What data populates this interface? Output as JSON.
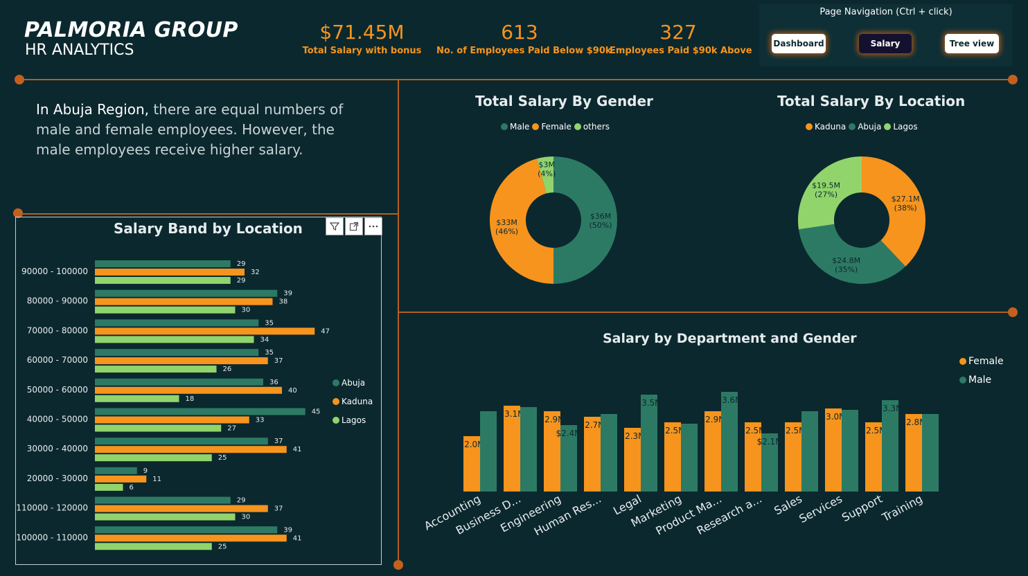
{
  "header": {
    "title": "PALMORIA GROUP",
    "subtitle": "HR ANALYTICS",
    "kpis": [
      {
        "value": "$71.45M",
        "label": "Total Salary with bonus"
      },
      {
        "value": "613",
        "label": "No. of Employees Paid Below $90k"
      },
      {
        "value": "327",
        "label": "Employees Paid $90k  Above"
      }
    ]
  },
  "navigation": {
    "title": "Page Navigation  (Ctrl + click)",
    "buttons": [
      {
        "label": "Dashboard"
      },
      {
        "label": "Salary"
      },
      {
        "label": "Tree view"
      }
    ]
  },
  "insight": {
    "lead": "In Abuja Region,",
    "text": " there are equal numbers of male and female  employees. However, the male employees receive higher salary."
  },
  "colors": {
    "abuja": "#2d7a64",
    "kaduna": "#f7941d",
    "lagos": "#91d46c",
    "male": "#2d7a64",
    "female": "#f7941d",
    "others": "#91d46c",
    "background": "#0b282e",
    "divider": "#b75e1f"
  },
  "icons": [
    "filter-icon",
    "focus-mode-icon",
    "more-options-icon"
  ],
  "chart_data": [
    {
      "id": "salary-band",
      "type": "bar",
      "orientation": "horizontal",
      "title": "Salary Band by Location",
      "categories": [
        "90000 - 100000",
        "80000 - 90000",
        "70000 - 80000",
        "60000 - 70000",
        "50000 - 60000",
        "40000 - 50000",
        "30000 - 40000",
        "20000 - 30000",
        "110000 - 120000",
        "100000 - 110000"
      ],
      "series": [
        {
          "name": "Abuja",
          "values": [
            29,
            39,
            35,
            35,
            36,
            45,
            37,
            9,
            29,
            39
          ]
        },
        {
          "name": "Kaduna",
          "values": [
            32,
            38,
            47,
            37,
            40,
            33,
            41,
            11,
            37,
            41
          ]
        },
        {
          "name": "Lagos",
          "values": [
            29,
            30,
            34,
            26,
            18,
            27,
            25,
            6,
            30,
            25
          ]
        }
      ],
      "legend": "right"
    },
    {
      "id": "gender-donut",
      "type": "pie",
      "title": "Total Salary By Gender",
      "labels": [
        "Male",
        "Female",
        "others"
      ],
      "values": [
        36,
        33,
        3
      ],
      "value_labels": [
        "$36M",
        "$33M",
        "$3M"
      ],
      "percent_labels": [
        "(50%)",
        "(46%)",
        "(4%)"
      ],
      "legend": "top"
    },
    {
      "id": "location-donut",
      "type": "pie",
      "title": "Total Salary By Location",
      "labels": [
        "Kaduna",
        "Abuja",
        "Lagos"
      ],
      "values": [
        27.1,
        24.8,
        19.5
      ],
      "value_labels": [
        "$27.1M",
        "$24.8M",
        "$19.5M"
      ],
      "percent_labels": [
        "(38%)",
        "(35%)",
        "(27%)"
      ],
      "legend": "top"
    },
    {
      "id": "department-gender",
      "type": "bar",
      "title": "Salary by Department and Gender",
      "categories": [
        "Accounting",
        "Business D...",
        "Engineering",
        "Human Res...",
        "Legal",
        "Marketing",
        "Product Ma...",
        "Research a...",
        "Sales",
        "Services",
        "Support",
        "Training"
      ],
      "series": [
        {
          "name": "Female",
          "values": [
            2.0,
            3.1,
            2.9,
            2.7,
            2.3,
            2.5,
            2.9,
            2.5,
            2.5,
            3.0,
            2.5,
            2.8
          ],
          "labels": [
            "$2.0M",
            "$3.1M",
            "$2.9M",
            "$2.7M",
            "$2.3M",
            "$2.5M",
            "$2.9M",
            "$2.5M",
            "$2.5M",
            "$3.0M",
            "$2.5M",
            "$2.8M"
          ]
        },
        {
          "name": "Male",
          "values": [
            2.9,
            3.05,
            2.4,
            2.8,
            3.5,
            2.45,
            3.6,
            2.1,
            2.9,
            2.95,
            3.3,
            2.8
          ],
          "labels": [
            "",
            "",
            "$2.4M",
            "",
            "$3.5M",
            "",
            "$3.6M",
            "$2.1M",
            "",
            "",
            "$3.3M",
            ""
          ]
        }
      ],
      "legend": "top-right"
    }
  ]
}
